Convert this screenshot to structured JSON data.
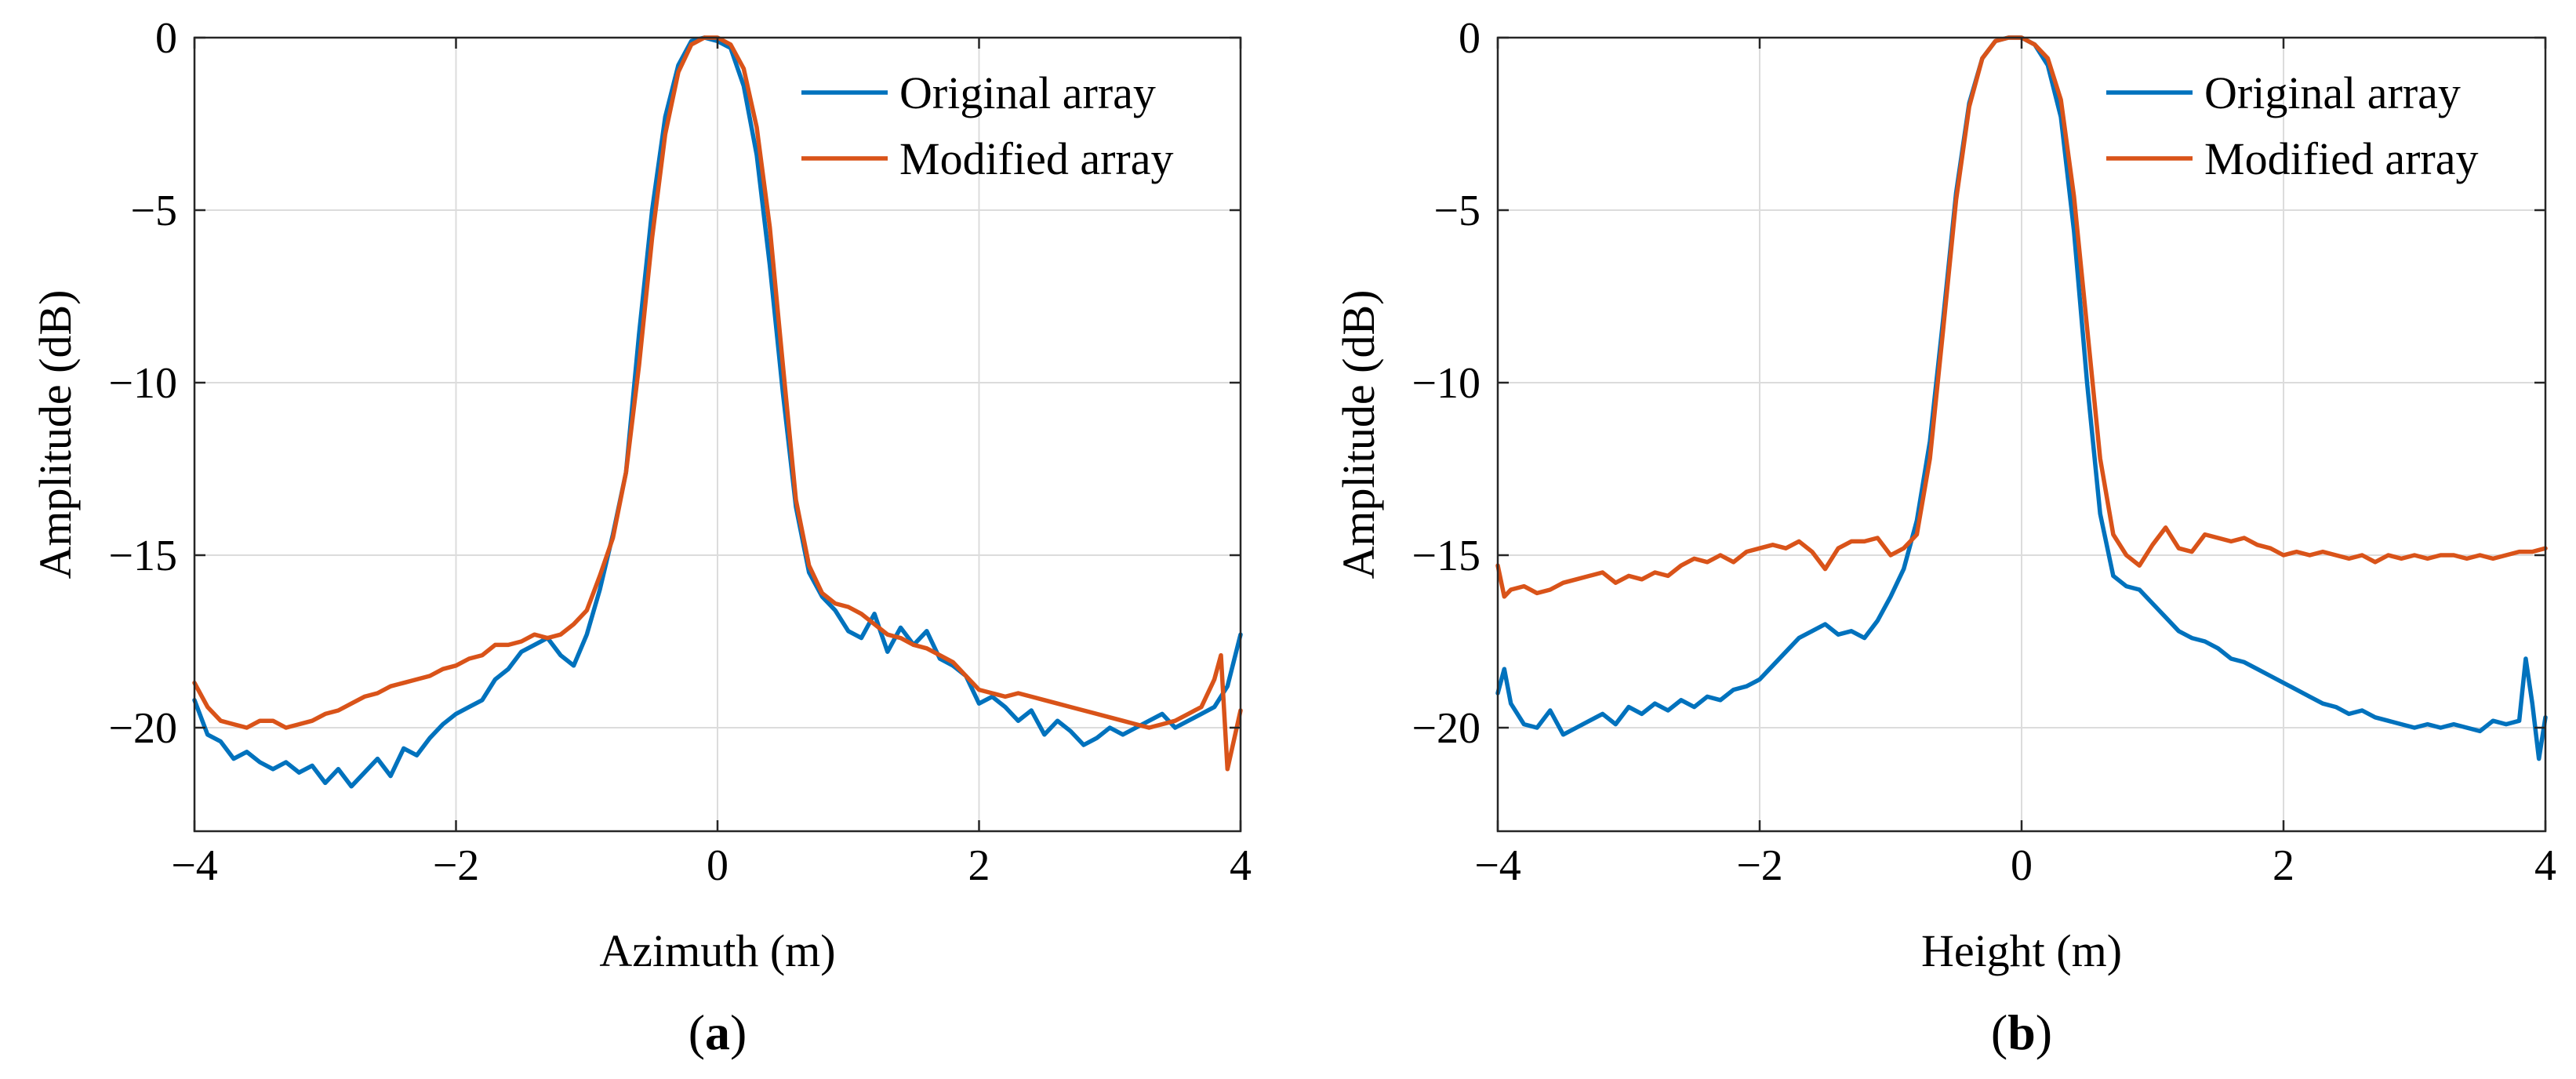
{
  "chart_data": [
    {
      "type": "line",
      "panel_label": "a",
      "xlabel": "Azimuth (m)",
      "ylabel": "Amplitude (dB)",
      "xlim": [
        -4,
        4
      ],
      "ylim": [
        -23,
        0
      ],
      "xticks": [
        -4,
        -2,
        0,
        2,
        4
      ],
      "yticks": [
        0,
        -5,
        -10,
        -15,
        -20
      ],
      "xtick_labels": [
        "−4",
        "−2",
        "0",
        "2",
        "4"
      ],
      "ytick_labels": [
        "0",
        "−5",
        "−10",
        "−15",
        "−20"
      ],
      "grid": true,
      "legend_position": "top-right",
      "series": [
        {
          "name": "Original array",
          "color": "#0072BD",
          "x": [
            -4.0,
            -3.9,
            -3.8,
            -3.7,
            -3.6,
            -3.5,
            -3.4,
            -3.3,
            -3.2,
            -3.1,
            -3.0,
            -2.9,
            -2.8,
            -2.7,
            -2.6,
            -2.5,
            -2.4,
            -2.3,
            -2.2,
            -2.1,
            -2.0,
            -1.9,
            -1.8,
            -1.7,
            -1.6,
            -1.5,
            -1.4,
            -1.3,
            -1.2,
            -1.1,
            -1.0,
            -0.9,
            -0.8,
            -0.7,
            -0.6,
            -0.5,
            -0.4,
            -0.3,
            -0.2,
            -0.1,
            0.0,
            0.1,
            0.2,
            0.3,
            0.4,
            0.5,
            0.6,
            0.7,
            0.8,
            0.9,
            1.0,
            1.1,
            1.2,
            1.3,
            1.4,
            1.5,
            1.6,
            1.7,
            1.8,
            1.9,
            2.0,
            2.1,
            2.2,
            2.3,
            2.4,
            2.5,
            2.6,
            2.7,
            2.8,
            2.9,
            3.0,
            3.1,
            3.2,
            3.3,
            3.4,
            3.5,
            3.6,
            3.7,
            3.8,
            3.9,
            4.0
          ],
          "y": [
            -19.2,
            -20.2,
            -20.4,
            -20.9,
            -20.7,
            -21.0,
            -21.2,
            -21.0,
            -21.3,
            -21.1,
            -21.6,
            -21.2,
            -21.7,
            -21.3,
            -20.9,
            -21.4,
            -20.6,
            -20.8,
            -20.3,
            -19.9,
            -19.6,
            -19.4,
            -19.2,
            -18.6,
            -18.3,
            -17.8,
            -17.6,
            -17.4,
            -17.9,
            -18.2,
            -17.3,
            -16.0,
            -14.4,
            -12.6,
            -8.6,
            -5.0,
            -2.3,
            -0.8,
            -0.1,
            0.0,
            -0.1,
            -0.3,
            -1.4,
            -3.4,
            -6.6,
            -10.3,
            -13.6,
            -15.5,
            -16.2,
            -16.6,
            -17.2,
            -17.4,
            -16.7,
            -17.8,
            -17.1,
            -17.6,
            -17.2,
            -18.0,
            -18.2,
            -18.5,
            -19.3,
            -19.1,
            -19.4,
            -19.8,
            -19.5,
            -20.2,
            -19.8,
            -20.1,
            -20.5,
            -20.3,
            -20.0,
            -20.2,
            -20.0,
            -19.8,
            -19.6,
            -20.0,
            -19.8,
            -19.6,
            -19.4,
            -18.8,
            -17.3
          ]
        },
        {
          "name": "Modified array",
          "color": "#D95319",
          "x": [
            -4.0,
            -3.9,
            -3.8,
            -3.7,
            -3.6,
            -3.5,
            -3.4,
            -3.3,
            -3.2,
            -3.1,
            -3.0,
            -2.9,
            -2.8,
            -2.7,
            -2.6,
            -2.5,
            -2.4,
            -2.3,
            -2.2,
            -2.1,
            -2.0,
            -1.9,
            -1.8,
            -1.7,
            -1.6,
            -1.5,
            -1.4,
            -1.3,
            -1.2,
            -1.1,
            -1.0,
            -0.9,
            -0.8,
            -0.7,
            -0.6,
            -0.5,
            -0.4,
            -0.3,
            -0.2,
            -0.1,
            0.0,
            0.1,
            0.2,
            0.3,
            0.4,
            0.5,
            0.6,
            0.7,
            0.8,
            0.9,
            1.0,
            1.1,
            1.2,
            1.3,
            1.4,
            1.5,
            1.6,
            1.7,
            1.8,
            1.9,
            2.0,
            2.1,
            2.2,
            2.3,
            2.4,
            2.5,
            2.6,
            2.7,
            2.8,
            2.9,
            3.0,
            3.1,
            3.2,
            3.3,
            3.4,
            3.5,
            3.6,
            3.7,
            3.8,
            3.85,
            3.9,
            4.0
          ],
          "y": [
            -18.7,
            -19.4,
            -19.8,
            -19.9,
            -20.0,
            -19.8,
            -19.8,
            -20.0,
            -19.9,
            -19.8,
            -19.6,
            -19.5,
            -19.3,
            -19.1,
            -19.0,
            -18.8,
            -18.7,
            -18.6,
            -18.5,
            -18.3,
            -18.2,
            -18.0,
            -17.9,
            -17.6,
            -17.6,
            -17.5,
            -17.3,
            -17.4,
            -17.3,
            -17.0,
            -16.6,
            -15.6,
            -14.5,
            -12.6,
            -9.5,
            -5.8,
            -2.8,
            -1.0,
            -0.2,
            0.0,
            0.0,
            -0.2,
            -0.9,
            -2.6,
            -5.5,
            -9.5,
            -13.4,
            -15.3,
            -16.1,
            -16.4,
            -16.5,
            -16.7,
            -17.0,
            -17.3,
            -17.4,
            -17.6,
            -17.7,
            -17.9,
            -18.1,
            -18.5,
            -18.9,
            -19.0,
            -19.1,
            -19.0,
            -19.1,
            -19.2,
            -19.3,
            -19.4,
            -19.5,
            -19.6,
            -19.7,
            -19.8,
            -19.9,
            -20.0,
            -19.9,
            -19.8,
            -19.6,
            -19.4,
            -18.6,
            -17.9,
            -21.2,
            -19.5
          ]
        }
      ]
    },
    {
      "type": "line",
      "panel_label": "b",
      "xlabel": "Height (m)",
      "ylabel": "Amplitude (dB)",
      "xlim": [
        -4,
        4
      ],
      "ylim": [
        -23,
        0
      ],
      "xticks": [
        -4,
        -2,
        0,
        2,
        4
      ],
      "yticks": [
        0,
        -5,
        -10,
        -15,
        -20
      ],
      "xtick_labels": [
        "−4",
        "−2",
        "0",
        "2",
        "4"
      ],
      "ytick_labels": [
        "0",
        "−5",
        "−10",
        "−15",
        "−20"
      ],
      "grid": true,
      "legend_position": "top-right",
      "series": [
        {
          "name": "Original array",
          "color": "#0072BD",
          "x": [
            -4.0,
            -3.95,
            -3.9,
            -3.8,
            -3.7,
            -3.6,
            -3.5,
            -3.4,
            -3.3,
            -3.2,
            -3.1,
            -3.0,
            -2.9,
            -2.8,
            -2.7,
            -2.6,
            -2.5,
            -2.4,
            -2.3,
            -2.2,
            -2.1,
            -2.0,
            -1.9,
            -1.8,
            -1.7,
            -1.6,
            -1.5,
            -1.4,
            -1.3,
            -1.2,
            -1.1,
            -1.0,
            -0.9,
            -0.8,
            -0.7,
            -0.6,
            -0.5,
            -0.4,
            -0.3,
            -0.2,
            -0.1,
            0.0,
            0.1,
            0.2,
            0.3,
            0.4,
            0.5,
            0.6,
            0.7,
            0.8,
            0.9,
            1.0,
            1.1,
            1.2,
            1.3,
            1.4,
            1.5,
            1.6,
            1.7,
            1.8,
            1.9,
            2.0,
            2.1,
            2.2,
            2.3,
            2.4,
            2.5,
            2.6,
            2.7,
            2.8,
            2.9,
            3.0,
            3.1,
            3.2,
            3.3,
            3.4,
            3.5,
            3.6,
            3.7,
            3.8,
            3.85,
            3.9,
            3.95,
            4.0
          ],
          "y": [
            -19.0,
            -18.3,
            -19.3,
            -19.9,
            -20.0,
            -19.5,
            -20.2,
            -20.0,
            -19.8,
            -19.6,
            -19.9,
            -19.4,
            -19.6,
            -19.3,
            -19.5,
            -19.2,
            -19.4,
            -19.1,
            -19.2,
            -18.9,
            -18.8,
            -18.6,
            -18.2,
            -17.8,
            -17.4,
            -17.2,
            -17.0,
            -17.3,
            -17.2,
            -17.4,
            -16.9,
            -16.2,
            -15.4,
            -14.0,
            -11.7,
            -8.2,
            -4.5,
            -1.9,
            -0.6,
            -0.1,
            0.0,
            0.0,
            -0.2,
            -0.8,
            -2.3,
            -5.6,
            -10.0,
            -13.8,
            -15.6,
            -15.9,
            -16.0,
            -16.4,
            -16.8,
            -17.2,
            -17.4,
            -17.5,
            -17.7,
            -18.0,
            -18.1,
            -18.3,
            -18.5,
            -18.7,
            -18.9,
            -19.1,
            -19.3,
            -19.4,
            -19.6,
            -19.5,
            -19.7,
            -19.8,
            -19.9,
            -20.0,
            -19.9,
            -20.0,
            -19.9,
            -20.0,
            -20.1,
            -19.8,
            -19.9,
            -19.8,
            -18.0,
            -19.3,
            -20.9,
            -19.7
          ]
        },
        {
          "name": "Modified array",
          "color": "#D95319",
          "x": [
            -4.0,
            -3.95,
            -3.9,
            -3.8,
            -3.7,
            -3.6,
            -3.5,
            -3.4,
            -3.3,
            -3.2,
            -3.1,
            -3.0,
            -2.9,
            -2.8,
            -2.7,
            -2.6,
            -2.5,
            -2.4,
            -2.3,
            -2.2,
            -2.1,
            -2.0,
            -1.9,
            -1.8,
            -1.7,
            -1.6,
            -1.5,
            -1.4,
            -1.3,
            -1.2,
            -1.1,
            -1.0,
            -0.9,
            -0.8,
            -0.7,
            -0.6,
            -0.5,
            -0.4,
            -0.3,
            -0.2,
            -0.1,
            0.0,
            0.1,
            0.2,
            0.3,
            0.4,
            0.5,
            0.6,
            0.7,
            0.8,
            0.9,
            1.0,
            1.1,
            1.2,
            1.3,
            1.4,
            1.5,
            1.6,
            1.7,
            1.8,
            1.9,
            2.0,
            2.1,
            2.2,
            2.3,
            2.4,
            2.5,
            2.6,
            2.7,
            2.8,
            2.9,
            3.0,
            3.1,
            3.2,
            3.3,
            3.4,
            3.5,
            3.6,
            3.7,
            3.8,
            3.9,
            4.0
          ],
          "y": [
            -15.3,
            -16.2,
            -16.0,
            -15.9,
            -16.1,
            -16.0,
            -15.8,
            -15.7,
            -15.6,
            -15.5,
            -15.8,
            -15.6,
            -15.7,
            -15.5,
            -15.6,
            -15.3,
            -15.1,
            -15.2,
            -15.0,
            -15.2,
            -14.9,
            -14.8,
            -14.7,
            -14.8,
            -14.6,
            -14.9,
            -15.4,
            -14.8,
            -14.6,
            -14.6,
            -14.5,
            -15.0,
            -14.8,
            -14.4,
            -12.2,
            -8.5,
            -4.7,
            -2.0,
            -0.6,
            -0.1,
            0.0,
            0.0,
            -0.2,
            -0.6,
            -1.8,
            -4.6,
            -8.4,
            -12.2,
            -14.4,
            -15.0,
            -15.3,
            -14.7,
            -14.2,
            -14.8,
            -14.9,
            -14.4,
            -14.5,
            -14.6,
            -14.5,
            -14.7,
            -14.8,
            -15.0,
            -14.9,
            -15.0,
            -14.9,
            -15.0,
            -15.1,
            -15.0,
            -15.2,
            -15.0,
            -15.1,
            -15.0,
            -15.1,
            -15.0,
            -15.0,
            -15.1,
            -15.0,
            -15.1,
            -15.0,
            -14.9,
            -14.9,
            -14.8
          ]
        }
      ]
    }
  ]
}
